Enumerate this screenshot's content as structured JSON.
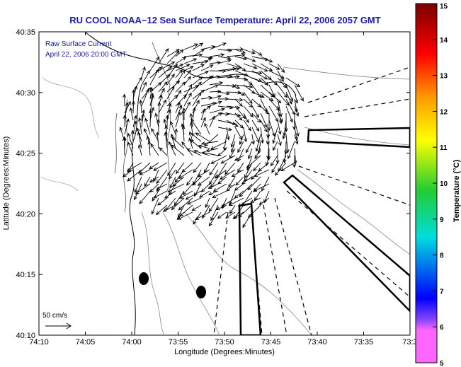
{
  "title": "RU COOL  NOAA−12  Sea Surface Temperature:  April 22, 2006 2057 GMT",
  "inset": {
    "line1": "Raw Surface Current",
    "line2": "April 22, 2006 20:00 GMT"
  },
  "scale_bar": {
    "label": "50 cm/s"
  },
  "axes": {
    "xlabel": "Longitude (Degrees:Minutes)",
    "ylabel": "Latitude (Degrees:Minutes)",
    "xticks": [
      "74:10",
      "74:05",
      "74:00",
      "73:55",
      "73:50",
      "73:45",
      "73:40",
      "73:35",
      "73:3"
    ],
    "yticks": [
      "40:35",
      "40:30",
      "40:25",
      "40:20",
      "40:15",
      "40:10"
    ]
  },
  "colorbar": {
    "label": "Temperature (°C)",
    "ticks": [
      "15",
      "14",
      "13",
      "12",
      "11",
      "10",
      "9",
      "8",
      "7",
      "6",
      "5"
    ],
    "colors": {
      "top": "#7a0000",
      "red": "#ff0000",
      "orange": "#ff9900",
      "yellow": "#ffff00",
      "green": "#22cc33",
      "cyan": "#00dddd",
      "blue": "#0000ff",
      "violet": "#8844ff",
      "magenta": "#ff66ff"
    }
  },
  "colors": {
    "title": "#1a1aa8",
    "land_and_bathymetry": "#888888",
    "vectors": "#000000"
  }
}
